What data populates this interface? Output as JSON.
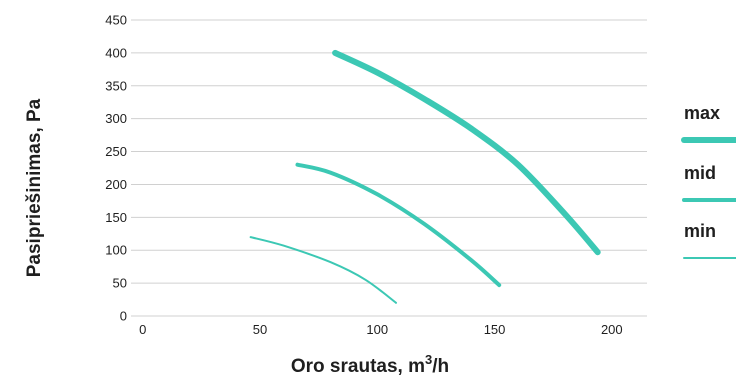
{
  "chart_data": {
    "type": "line",
    "title": "",
    "xlabel": "Oro srautas, m",
    "xlabel_sup": "3",
    "xlabel_suffix": "/h",
    "ylabel": "Pasipriešinimas, Pa",
    "xlim": [
      -5,
      215
    ],
    "ylim": [
      0,
      450
    ],
    "x_ticks": [
      "0",
      "50",
      "100",
      "150",
      "200"
    ],
    "y_ticks": [
      "0",
      "50",
      "100",
      "150",
      "200",
      "250",
      "300",
      "350",
      "400",
      "450"
    ],
    "grid": "horizontal",
    "legend_position": "right",
    "accent_color": "#3cc8b4",
    "series": [
      {
        "name": "max",
        "line_width": 6,
        "points": [
          [
            82,
            400
          ],
          [
            100,
            370
          ],
          [
            120,
            330
          ],
          [
            140,
            285
          ],
          [
            160,
            230
          ],
          [
            180,
            155
          ],
          [
            194,
            97
          ]
        ]
      },
      {
        "name": "mid",
        "line_width": 4,
        "points": [
          [
            66,
            230
          ],
          [
            80,
            218
          ],
          [
            100,
            185
          ],
          [
            120,
            140
          ],
          [
            140,
            85
          ],
          [
            152,
            47
          ]
        ]
      },
      {
        "name": "min",
        "line_width": 2,
        "points": [
          [
            46,
            120
          ],
          [
            60,
            107
          ],
          [
            80,
            82
          ],
          [
            95,
            55
          ],
          [
            108,
            20
          ]
        ]
      }
    ]
  }
}
